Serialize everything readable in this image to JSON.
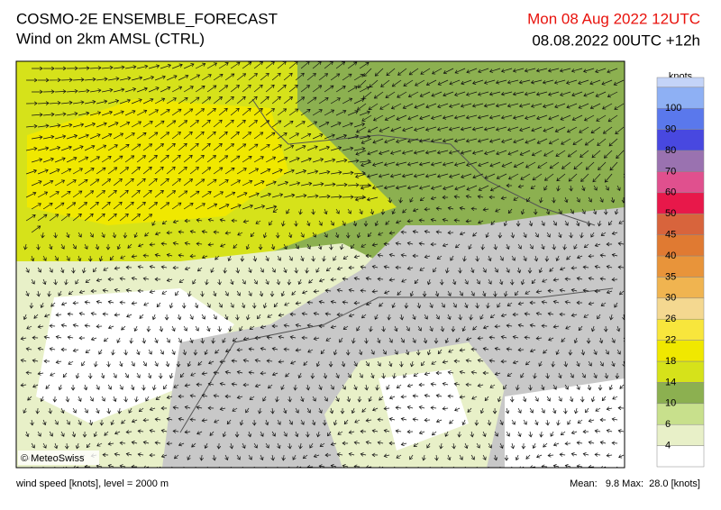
{
  "header": {
    "title": "COSMO-2E ENSEMBLE_FORECAST",
    "subtitle": "Wind on 2km AMSL (CTRL)",
    "valid_time": "Mon 08 Aug 2022 12UTC",
    "run_time": "08.08.2022 00UTC +12h"
  },
  "map": {
    "credit": "© MeteoSwiss"
  },
  "legend": {
    "unit": "knots",
    "levels": [
      4,
      6,
      10,
      14,
      18,
      22,
      26,
      30,
      35,
      40,
      45,
      50,
      60,
      70,
      80,
      90,
      100
    ],
    "colors": [
      "#ffffff",
      "#e8f0c8",
      "#c8e08c",
      "#8cb050",
      "#d6e21a",
      "#f0e800",
      "#f8e63c",
      "#f4d890",
      "#f0b450",
      "#e8943a",
      "#e07a32",
      "#d8643c",
      "#e8184a",
      "#e0508e",
      "#9a72b0",
      "#4848e0",
      "#5a78ec",
      "#8eb0f4",
      "#c4d4f8"
    ]
  },
  "footer": {
    "description": "wind speed [knots], level = 2000 m",
    "stats": "Mean:   9.8 Max:  28.0 [knots]"
  }
}
